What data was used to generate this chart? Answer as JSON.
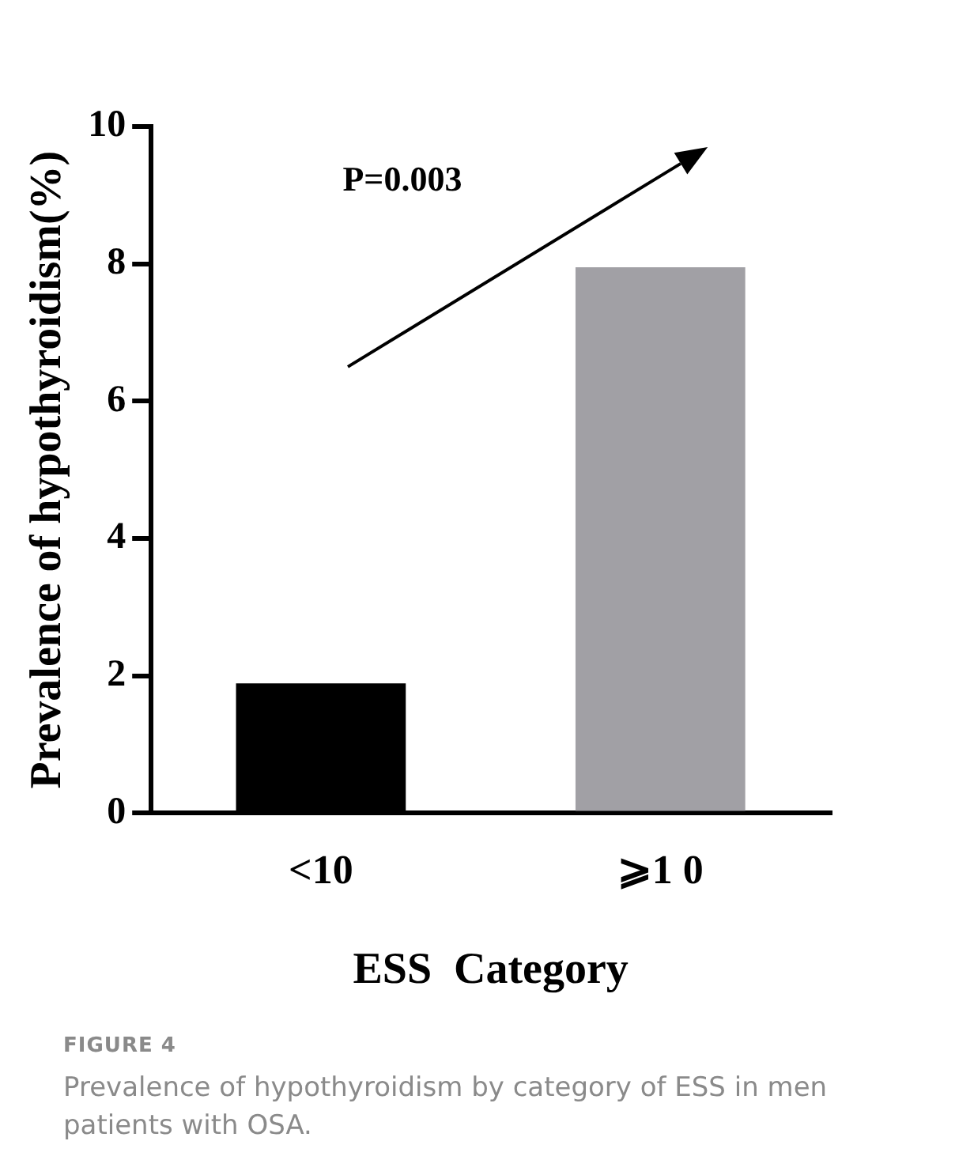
{
  "chart_data": {
    "type": "bar",
    "categories": [
      "<10",
      "⩾1 0"
    ],
    "values": [
      1.89,
      7.95
    ],
    "colors": [
      "#000000",
      "#a1a0a5"
    ],
    "xlabel": "ESS  Category",
    "ylabel": "Prevalence of hypothyroidism(%)",
    "ylim": [
      0,
      10
    ],
    "yticks": [
      0,
      2,
      4,
      6,
      8,
      10
    ],
    "grid": false,
    "legend": false,
    "annotations": [
      "P=0.003",
      "FIGURE 4",
      "Prevalence of hypothyroidism by category of ESS in men patients with OSA."
    ]
  }
}
